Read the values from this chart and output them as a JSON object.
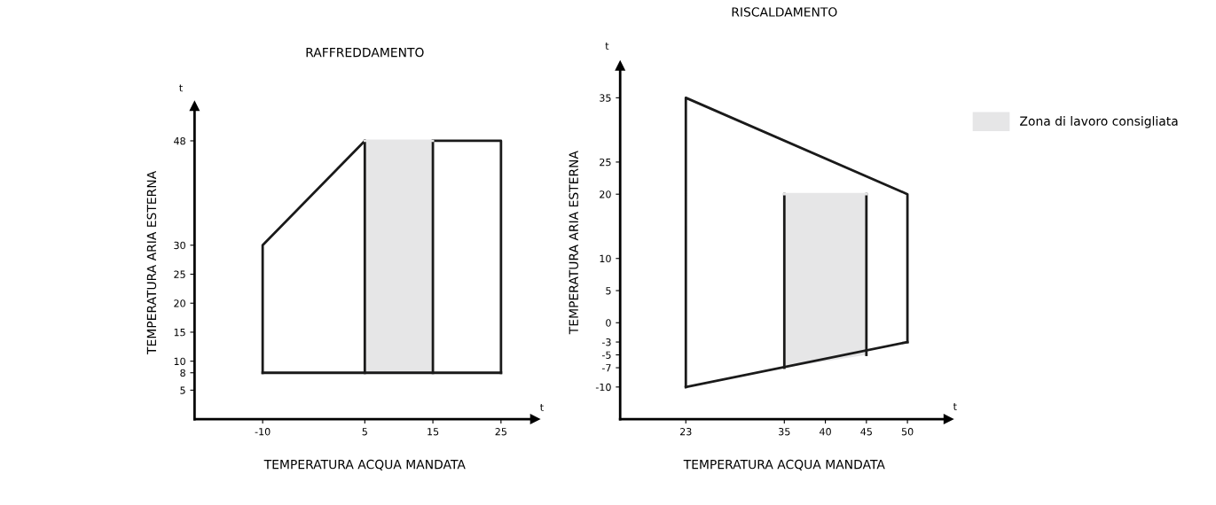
{
  "chart_data": [
    {
      "type": "line",
      "title": "RAFFREDDAMENTO",
      "xlabel": "TEMPERATURA ACQUA MANDATA",
      "ylabel": "TEMPERATURA ARIA ESTERNA",
      "annotations": [
        "t",
        "t"
      ],
      "xlim": [
        -20,
        30
      ],
      "ylim": [
        0,
        54
      ],
      "xticks": [
        -10,
        5,
        15,
        25
      ],
      "yticks": [
        5,
        8,
        10,
        15,
        20,
        25,
        30,
        48
      ],
      "grid": false,
      "marker": "none",
      "line_style": "solid",
      "series": [
        {
          "color": "#e6e6e7",
          "x": [
            5,
            15
          ],
          "values": [
            48,
            48
          ],
          "lower": [
            8,
            8
          ],
          "upper": [
            48,
            48
          ]
        },
        {
          "color": "#1a1a1a",
          "x": [
            -10,
            -10,
            5
          ],
          "values": [
            8,
            30,
            48
          ]
        },
        {
          "color": "#1a1a1a",
          "x": [
            15,
            25,
            25
          ],
          "values": [
            48,
            48,
            8
          ]
        },
        {
          "color": "#1a1a1a",
          "x": [
            -10,
            25
          ],
          "values": [
            8,
            8
          ]
        },
        {
          "color": "#1a1a1a",
          "x": [
            5,
            5
          ],
          "values": [
            8,
            48
          ]
        },
        {
          "color": "#1a1a1a",
          "x": [
            15,
            15
          ],
          "values": [
            8,
            48
          ]
        }
      ]
    },
    {
      "type": "line",
      "title": "RISCALDAMENTO",
      "xlabel": "TEMPERATURA ACQUA MANDATA",
      "ylabel": "TEMPERATURA ARIA ESTERNA",
      "annotations": [
        "t",
        "t"
      ],
      "xlim": [
        15,
        55
      ],
      "ylim": [
        -15,
        40
      ],
      "xticks": [
        23,
        35,
        40,
        45,
        50
      ],
      "yticks": [
        -10,
        -7,
        -5,
        -3,
        0,
        5,
        10,
        20,
        25,
        35
      ],
      "grid": false,
      "marker": "none",
      "line_style": "solid",
      "legend": "right",
      "series": [
        {
          "name": "Zona di lavoro consigliata",
          "color": "#e6e6e7",
          "x": [
            35,
            45
          ],
          "values": [
            20,
            20
          ],
          "lower": [
            -7,
            -5
          ],
          "upper": [
            20,
            20
          ]
        },
        {
          "color": "#1a1a1a",
          "x": [
            23,
            23,
            50,
            50
          ],
          "values": [
            -10,
            35,
            20,
            -3
          ]
        },
        {
          "color": "#1a1a1a",
          "x": [
            23,
            50
          ],
          "values": [
            -10,
            -3
          ]
        },
        {
          "color": "#1a1a1a",
          "x": [
            35,
            35
          ],
          "values": [
            -7,
            20
          ]
        },
        {
          "color": "#1a1a1a",
          "x": [
            45,
            45
          ],
          "values": [
            -5,
            20
          ]
        }
      ]
    }
  ]
}
